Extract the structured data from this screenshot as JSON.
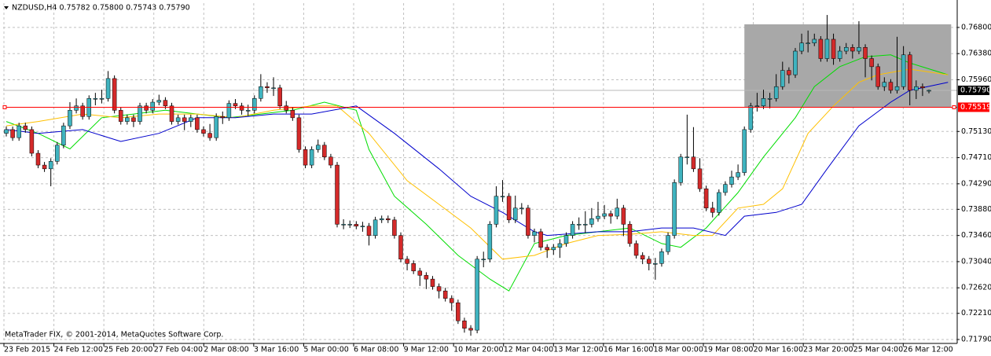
{
  "chart_data": {
    "type": "candlestick",
    "title": "NZDUSD,H4  0.75782 0.75800 0.75743 0.75790",
    "footer": "MetaTrader FIX, © 2001-2014, MetaQuotes Software Corp.",
    "up_color": "#3fb3bf",
    "down_color": "#d42a2a",
    "ylim": [
      0.71727,
      0.7719
    ],
    "yticks": [
      {
        "value": 0.768,
        "label": "0.76800"
      },
      {
        "value": 0.7638,
        "label": "0.76380"
      },
      {
        "value": 0.7596,
        "label": "0.75960"
      },
      {
        "value": 0.7513,
        "label": "0.75130"
      },
      {
        "value": 0.7471,
        "label": "0.74710"
      },
      {
        "value": 0.7429,
        "label": "0.74290"
      },
      {
        "value": 0.7388,
        "label": "0.73880"
      },
      {
        "value": 0.7346,
        "label": "0.73460"
      },
      {
        "value": 0.7304,
        "label": "0.73040"
      },
      {
        "value": 0.7262,
        "label": "0.72620"
      },
      {
        "value": 0.7221,
        "label": "0.72210"
      },
      {
        "value": 0.7179,
        "label": "0.71790"
      }
    ],
    "grid": true,
    "categories": [
      "23 Feb 2015",
      null,
      null,
      null,
      null,
      null,
      null,
      null,
      "24 Feb 12:00",
      null,
      null,
      null,
      null,
      null,
      null,
      null,
      "25 Feb 20:00",
      null,
      null,
      null,
      null,
      null,
      null,
      null,
      "27 Feb 04:00",
      null,
      null,
      null,
      null,
      null,
      null,
      null,
      "2 Mar 08:00",
      null,
      null,
      null,
      null,
      null,
      null,
      null,
      "3 Mar 16:00",
      null,
      null,
      null,
      null,
      null,
      null,
      null,
      "5 Mar 00:00",
      null,
      null,
      null,
      null,
      null,
      null,
      null,
      "6 Mar 08:00",
      null,
      null,
      null,
      null,
      null,
      null,
      null,
      "9 Mar 12:00",
      null,
      null,
      null,
      null,
      null,
      null,
      null,
      "10 Mar 20:00",
      null,
      null,
      null,
      null,
      null,
      null,
      null,
      "12 Mar 04:00",
      null,
      null,
      null,
      null,
      null,
      null,
      null,
      "13 Mar 12:00",
      null,
      null,
      null,
      null,
      null,
      null,
      null,
      "16 Mar 16:00",
      null,
      null,
      null,
      null,
      null,
      null,
      null,
      "18 Mar 00:00",
      null,
      null,
      null,
      null,
      null,
      null,
      null,
      "19 Mar 08:00",
      null,
      null,
      null,
      null,
      null,
      null,
      null,
      "20 Mar 16:00",
      null,
      null,
      null,
      null,
      null,
      null,
      null,
      "23 Mar 20:00",
      null,
      null,
      null,
      null,
      null,
      null,
      null,
      "25 Mar 04:00",
      null,
      null,
      null,
      null,
      null,
      null,
      null,
      "26 Mar 12:00",
      null
    ],
    "ohlc": [
      [
        0.751,
        0.7521,
        0.7505,
        0.7516
      ],
      [
        0.7516,
        0.7521,
        0.7498,
        0.7503
      ],
      [
        0.7503,
        0.7527,
        0.7498,
        0.7522
      ],
      [
        0.7522,
        0.7527,
        0.7511,
        0.7516
      ],
      [
        0.7516,
        0.7521,
        0.7473,
        0.7478
      ],
      [
        0.7478,
        0.7483,
        0.7454,
        0.7459
      ],
      [
        0.7459,
        0.7464,
        0.7448,
        0.7453
      ],
      [
        0.7453,
        0.747,
        0.7425,
        0.7465
      ],
      [
        0.7465,
        0.7496,
        0.746,
        0.7491
      ],
      [
        0.7491,
        0.7527,
        0.7486,
        0.7522
      ],
      [
        0.7522,
        0.756,
        0.7517,
        0.7547
      ],
      [
        0.7547,
        0.7566,
        0.7542,
        0.7554
      ],
      [
        0.7554,
        0.7559,
        0.7532,
        0.7537
      ],
      [
        0.7537,
        0.7571,
        0.7532,
        0.7566
      ],
      [
        0.7566,
        0.7575,
        0.7555,
        0.7566
      ],
      [
        0.7566,
        0.758,
        0.7558,
        0.7566
      ],
      [
        0.7566,
        0.761,
        0.7561,
        0.7598
      ],
      [
        0.7598,
        0.7603,
        0.7542,
        0.7547
      ],
      [
        0.7547,
        0.7552,
        0.7524,
        0.7529
      ],
      [
        0.7529,
        0.754,
        0.7524,
        0.7535
      ],
      [
        0.7535,
        0.754,
        0.752,
        0.7529
      ],
      [
        0.7529,
        0.7559,
        0.7524,
        0.7554
      ],
      [
        0.7554,
        0.7559,
        0.7542,
        0.7547
      ],
      [
        0.7547,
        0.7565,
        0.7542,
        0.756
      ],
      [
        0.756,
        0.7572,
        0.7555,
        0.7563
      ],
      [
        0.7563,
        0.7568,
        0.7549,
        0.7554
      ],
      [
        0.7554,
        0.7559,
        0.7524,
        0.7529
      ],
      [
        0.7529,
        0.754,
        0.7524,
        0.7535
      ],
      [
        0.7535,
        0.754,
        0.7515,
        0.7529
      ],
      [
        0.7529,
        0.754,
        0.752,
        0.7535
      ],
      [
        0.7535,
        0.754,
        0.7511,
        0.7516
      ],
      [
        0.7516,
        0.7521,
        0.7505,
        0.751
      ],
      [
        0.751,
        0.7525,
        0.7498,
        0.7503
      ],
      [
        0.7503,
        0.7542,
        0.7498,
        0.7537
      ],
      [
        0.7537,
        0.7545,
        0.7525,
        0.7535
      ],
      [
        0.7535,
        0.7563,
        0.753,
        0.7558
      ],
      [
        0.7558,
        0.7565,
        0.7549,
        0.7554
      ],
      [
        0.7554,
        0.7559,
        0.754,
        0.7547
      ],
      [
        0.7547,
        0.7556,
        0.7538,
        0.7547
      ],
      [
        0.7547,
        0.7571,
        0.7542,
        0.7566
      ],
      [
        0.7566,
        0.7605,
        0.7561,
        0.7585
      ],
      [
        0.7585,
        0.7592,
        0.7575,
        0.7583
      ],
      [
        0.7583,
        0.76,
        0.757,
        0.7583
      ],
      [
        0.7583,
        0.7588,
        0.7549,
        0.7554
      ],
      [
        0.7554,
        0.7562,
        0.7542,
        0.7547
      ],
      [
        0.7547,
        0.7552,
        0.753,
        0.7535
      ],
      [
        0.7535,
        0.754,
        0.7479,
        0.7484
      ],
      [
        0.7484,
        0.7489,
        0.7454,
        0.7459
      ],
      [
        0.7459,
        0.7489,
        0.7454,
        0.7484
      ],
      [
        0.7484,
        0.75,
        0.7479,
        0.7491
      ],
      [
        0.7491,
        0.7496,
        0.7467,
        0.7472
      ],
      [
        0.7472,
        0.7477,
        0.7454,
        0.7459
      ],
      [
        0.7459,
        0.7464,
        0.7359,
        0.7364
      ],
      [
        0.7364,
        0.7372,
        0.7356,
        0.7364
      ],
      [
        0.7364,
        0.737,
        0.7358,
        0.7364
      ],
      [
        0.7364,
        0.7369,
        0.7356,
        0.7361
      ],
      [
        0.7361,
        0.7368,
        0.7352,
        0.7361
      ],
      [
        0.7361,
        0.7366,
        0.733,
        0.7346
      ],
      [
        0.7346,
        0.7376,
        0.7341,
        0.7371
      ],
      [
        0.7371,
        0.7378,
        0.7366,
        0.7373
      ],
      [
        0.7373,
        0.7378,
        0.7366,
        0.7371
      ],
      [
        0.7371,
        0.7376,
        0.7341,
        0.7346
      ],
      [
        0.7346,
        0.7351,
        0.7303,
        0.7308
      ],
      [
        0.7308,
        0.7313,
        0.729,
        0.7301
      ],
      [
        0.7301,
        0.7306,
        0.7284,
        0.7289
      ],
      [
        0.7289,
        0.7294,
        0.7265,
        0.7282
      ],
      [
        0.7282,
        0.7287,
        0.726,
        0.7276
      ],
      [
        0.7276,
        0.7281,
        0.7259,
        0.7264
      ],
      [
        0.7264,
        0.7269,
        0.7245,
        0.7257
      ],
      [
        0.7257,
        0.7262,
        0.724,
        0.7245
      ],
      [
        0.7245,
        0.725,
        0.7225,
        0.7238
      ],
      [
        0.7238,
        0.7243,
        0.7204,
        0.7209
      ],
      [
        0.7209,
        0.7214,
        0.719,
        0.7197
      ],
      [
        0.7197,
        0.7202,
        0.7185,
        0.7194
      ],
      [
        0.7194,
        0.7313,
        0.7189,
        0.7308
      ],
      [
        0.7308,
        0.732,
        0.7295,
        0.7308
      ],
      [
        0.7308,
        0.7369,
        0.7303,
        0.7364
      ],
      [
        0.7364,
        0.7425,
        0.7359,
        0.7409
      ],
      [
        0.7409,
        0.7435,
        0.74,
        0.7409
      ],
      [
        0.7409,
        0.7414,
        0.7366,
        0.7371
      ],
      [
        0.7371,
        0.741,
        0.7366,
        0.739
      ],
      [
        0.739,
        0.7398,
        0.738,
        0.739
      ],
      [
        0.739,
        0.7395,
        0.7341,
        0.7346
      ],
      [
        0.7346,
        0.7357,
        0.7335,
        0.7352
      ],
      [
        0.7352,
        0.7357,
        0.7322,
        0.7327
      ],
      [
        0.7327,
        0.7332,
        0.731,
        0.7323
      ],
      [
        0.7323,
        0.7332,
        0.7315,
        0.7327
      ],
      [
        0.7327,
        0.734,
        0.731,
        0.7333
      ],
      [
        0.7333,
        0.7351,
        0.7328,
        0.7346
      ],
      [
        0.7346,
        0.7369,
        0.7341,
        0.7364
      ],
      [
        0.7364,
        0.7375,
        0.7355,
        0.7364
      ],
      [
        0.7364,
        0.7385,
        0.735,
        0.7364
      ],
      [
        0.7364,
        0.739,
        0.7359,
        0.7373
      ],
      [
        0.7373,
        0.74,
        0.7368,
        0.7377
      ],
      [
        0.7377,
        0.7395,
        0.7372,
        0.7381
      ],
      [
        0.7381,
        0.7386,
        0.7365,
        0.7377
      ],
      [
        0.7377,
        0.7405,
        0.7372,
        0.739
      ],
      [
        0.739,
        0.7395,
        0.7345,
        0.7364
      ],
      [
        0.7364,
        0.7369,
        0.7328,
        0.7333
      ],
      [
        0.7333,
        0.7338,
        0.7309,
        0.7314
      ],
      [
        0.7314,
        0.7319,
        0.73,
        0.7308
      ],
      [
        0.7308,
        0.7313,
        0.729,
        0.7301
      ],
      [
        0.7301,
        0.731,
        0.7275,
        0.7301
      ],
      [
        0.7301,
        0.7325,
        0.7296,
        0.732
      ],
      [
        0.732,
        0.7351,
        0.7315,
        0.7346
      ],
      [
        0.7346,
        0.7436,
        0.7341,
        0.7431
      ],
      [
        0.7431,
        0.7477,
        0.7426,
        0.7472
      ],
      [
        0.7472,
        0.754,
        0.746,
        0.7472
      ],
      [
        0.7472,
        0.752,
        0.7448,
        0.7453
      ],
      [
        0.7453,
        0.747,
        0.7416,
        0.7421
      ],
      [
        0.7421,
        0.7426,
        0.7385,
        0.739
      ],
      [
        0.739,
        0.74,
        0.7375,
        0.7383
      ],
      [
        0.7383,
        0.742,
        0.7378,
        0.7415
      ],
      [
        0.7415,
        0.7433,
        0.741,
        0.7428
      ],
      [
        0.7428,
        0.745,
        0.7423,
        0.744
      ],
      [
        0.744,
        0.746,
        0.7435,
        0.7447
      ],
      [
        0.7447,
        0.7521,
        0.7442,
        0.7516
      ],
      [
        0.7516,
        0.7559,
        0.7511,
        0.7554
      ],
      [
        0.7554,
        0.7575,
        0.7545,
        0.7554
      ],
      [
        0.7554,
        0.758,
        0.7549,
        0.7566
      ],
      [
        0.7566,
        0.7575,
        0.755,
        0.7566
      ],
      [
        0.7566,
        0.7605,
        0.7561,
        0.7585
      ],
      [
        0.7585,
        0.7625,
        0.758,
        0.7611
      ],
      [
        0.7611,
        0.7616,
        0.759,
        0.7604
      ],
      [
        0.7604,
        0.7647,
        0.7599,
        0.7642
      ],
      [
        0.7642,
        0.767,
        0.7637,
        0.7655
      ],
      [
        0.7655,
        0.7675,
        0.764,
        0.7655
      ],
      [
        0.7655,
        0.767,
        0.765,
        0.7661
      ],
      [
        0.7661,
        0.7666,
        0.7625,
        0.763
      ],
      [
        0.763,
        0.77,
        0.7625,
        0.7661
      ],
      [
        0.7661,
        0.767,
        0.762,
        0.763
      ],
      [
        0.763,
        0.765,
        0.7625,
        0.7642
      ],
      [
        0.7642,
        0.7655,
        0.7637,
        0.7648
      ],
      [
        0.7648,
        0.7653,
        0.763,
        0.7642
      ],
      [
        0.7642,
        0.769,
        0.7637,
        0.7648
      ],
      [
        0.7648,
        0.7653,
        0.76,
        0.763
      ],
      [
        0.763,
        0.7635,
        0.7595,
        0.7617
      ],
      [
        0.7617,
        0.7622,
        0.758,
        0.7585
      ],
      [
        0.7585,
        0.76,
        0.7578,
        0.7592
      ],
      [
        0.7592,
        0.7597,
        0.7574,
        0.7579
      ],
      [
        0.7579,
        0.7665,
        0.7574,
        0.7585
      ],
      [
        0.7585,
        0.765,
        0.758,
        0.7636
      ],
      [
        0.7636,
        0.7641,
        0.7555,
        0.7579
      ],
      [
        0.7579,
        0.7595,
        0.7565,
        0.7585
      ],
      [
        0.7585,
        0.759,
        0.757,
        0.7583
      ],
      [
        0.75782,
        0.758,
        0.75743,
        0.7579
      ]
    ],
    "series": [
      {
        "color": "#00dd00",
        "x": [
          0,
          5,
          10,
          15,
          20,
          25,
          30,
          35,
          40,
          45,
          50,
          55,
          57,
          61,
          66,
          71,
          76,
          79,
          83,
          88,
          93,
          98,
          103,
          106,
          110,
          115,
          119,
          124,
          127,
          131,
          135,
          139,
          142,
          148
        ],
        "values": [
          0.7529,
          0.751,
          0.7485,
          0.7535,
          0.7541,
          0.7547,
          0.7541,
          0.7535,
          0.7541,
          0.7547,
          0.756,
          0.7547,
          0.7484,
          0.7409,
          0.7364,
          0.7314,
          0.7276,
          0.7257,
          0.7333,
          0.7346,
          0.7352,
          0.7358,
          0.7333,
          0.7327,
          0.7358,
          0.7415,
          0.7472,
          0.7535,
          0.7585,
          0.7617,
          0.7633,
          0.7636,
          0.7623,
          0.7604
        ]
      },
      {
        "color": "#ffc000",
        "x": [
          0,
          5,
          12,
          18,
          24,
          30,
          36,
          42,
          48,
          52,
          57,
          63,
          68,
          73,
          78,
          83,
          88,
          93,
          98,
          103,
          108,
          111,
          115,
          119,
          122,
          126,
          130,
          134,
          137,
          142,
          148
        ],
        "values": [
          0.7522,
          0.7529,
          0.7541,
          0.7535,
          0.7541,
          0.7541,
          0.7535,
          0.7547,
          0.7554,
          0.7554,
          0.751,
          0.7434,
          0.7396,
          0.7358,
          0.7308,
          0.7314,
          0.7333,
          0.7346,
          0.7348,
          0.7352,
          0.7346,
          0.7346,
          0.739,
          0.7396,
          0.7421,
          0.751,
          0.7554,
          0.7592,
          0.7604,
          0.7613,
          0.7604
        ]
      },
      {
        "color": "#0000cc",
        "x": [
          0,
          5,
          12,
          18,
          24,
          30,
          36,
          42,
          48,
          55,
          61,
          68,
          73,
          78,
          83,
          85,
          93,
          98,
          103,
          108,
          113,
          116,
          121,
          125,
          129,
          134,
          139,
          142,
          148
        ],
        "values": [
          0.7516,
          0.751,
          0.7516,
          0.7497,
          0.751,
          0.7535,
          0.7535,
          0.7541,
          0.7541,
          0.7554,
          0.751,
          0.7453,
          0.7409,
          0.7383,
          0.7352,
          0.7346,
          0.7352,
          0.7352,
          0.7358,
          0.7358,
          0.7346,
          0.7377,
          0.7383,
          0.7396,
          0.7453,
          0.7522,
          0.756,
          0.7579,
          0.7592
        ]
      }
    ],
    "rectangle": {
      "x": [
        116,
        148.5
      ],
      "y": [
        0.7552,
        0.7685
      ],
      "color": "#a8a8a8"
    },
    "hline": {
      "value": 0.75519,
      "color": "#ff0000"
    },
    "last_price": {
      "value": 0.7579,
      "label": "0.75790"
    }
  }
}
